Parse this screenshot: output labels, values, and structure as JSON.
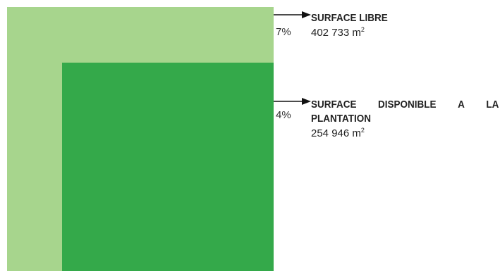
{
  "colors": {
    "outer": "#a7d58d",
    "inner": "#34a94a",
    "arrow": "#111111"
  },
  "items": [
    {
      "percent": "7%",
      "title_words": [
        "SURFACE",
        "LIBRE"
      ],
      "title_line2": "",
      "value": "402 733 m",
      "value_sup": "2"
    },
    {
      "percent": "4%",
      "title_words": [
        "SURFACE",
        "DISPONIBLE",
        "A",
        "LA"
      ],
      "title_line2": "PLANTATION",
      "value": "254 946 m",
      "value_sup": "2"
    }
  ]
}
